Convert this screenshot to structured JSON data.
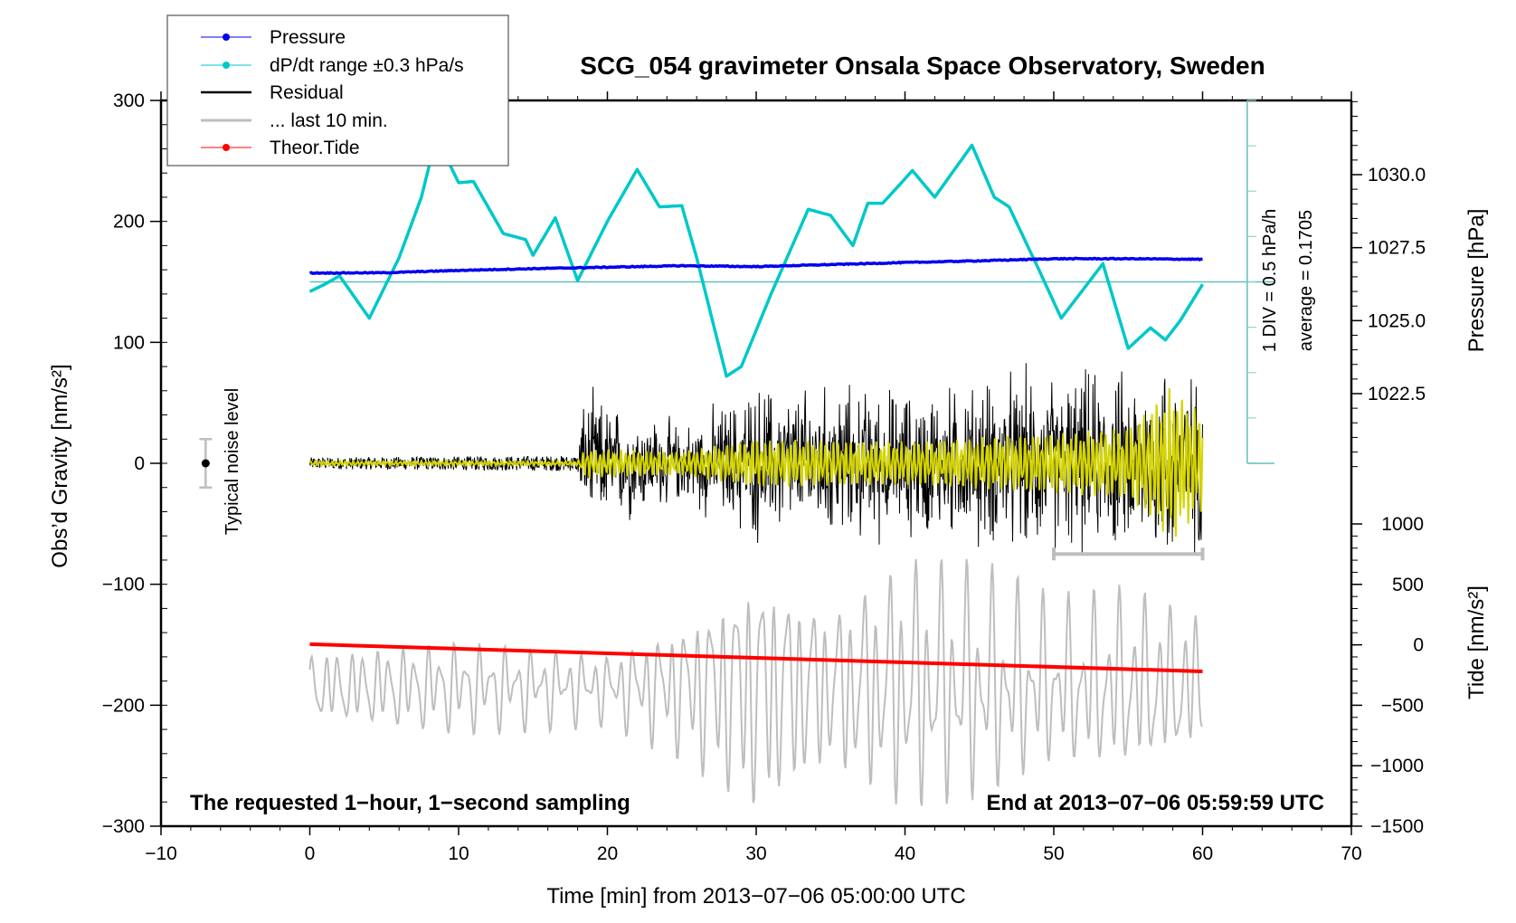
{
  "chart_data": {
    "type": "line",
    "title": "SCG_054 gravimeter Onsala Space Observatory, Sweden",
    "xlabel": "Time [min] from 2013−07−06 05:00:00 UTC",
    "ylabel_left": "Obs’d Gravity [nm/s²]",
    "ylabel_right_top": "Pressure [hPa]",
    "ylabel_right_bottom": "Tide [nm/s²]",
    "xlim": [
      -10,
      70
    ],
    "ylim_left": [
      -300,
      300
    ],
    "x_ticks": [
      "−10",
      "0",
      "10",
      "20",
      "30",
      "40",
      "50",
      "60",
      "70"
    ],
    "x_tick_values": [
      -10,
      0,
      10,
      20,
      30,
      40,
      50,
      60,
      70
    ],
    "y_left_ticks": [
      "300",
      "200",
      "100",
      "0",
      "−100",
      "−200",
      "−300"
    ],
    "y_left_tick_values": [
      300,
      200,
      100,
      0,
      -100,
      -200,
      -300
    ],
    "pressure_axis": {
      "ticks": [
        "1030.0",
        "1027.5",
        "1025.0",
        "1022.5"
      ],
      "tick_values": [
        1030.0,
        1027.5,
        1025.0,
        1022.5
      ],
      "range": [
        1020.0,
        1032.5
      ]
    },
    "tide_axis": {
      "ticks": [
        "1000",
        "500",
        "0",
        "−500",
        "−1000",
        "−1500"
      ],
      "tick_values": [
        1000,
        500,
        0,
        -500,
        -1000,
        -1500
      ],
      "range": [
        -1500,
        1000
      ]
    },
    "legend": {
      "placement": "top-left",
      "entries": [
        {
          "label": "Pressure",
          "color": "#0000ee",
          "marker": true
        },
        {
          "label": "dP/dt range ±0.3 hPa/s",
          "color": "#00c8c8",
          "marker": true
        },
        {
          "label": "Residual",
          "color": "#000000",
          "marker": false
        },
        {
          "label": "... last 10 min.",
          "color": "#bebebe",
          "marker": false
        },
        {
          "label": "Theor.Tide",
          "color": "#ff0000",
          "marker": true
        }
      ]
    },
    "annotations": {
      "noise_label": "Typical noise level",
      "noise_level": {
        "x": -7,
        "y": 0,
        "err": 20
      },
      "dpdt_scale": "1 DIV = 0.5 hPa/h",
      "dpdt_average": "average = 0.1705",
      "bottom_left": "The requested 1−hour, 1−second sampling",
      "bottom_right": "End at 2013−07−06 05:59:59 UTC",
      "last10_range_min": [
        50,
        60
      ]
    },
    "series": [
      {
        "name": "Pressure",
        "color": "#0000ee",
        "axis": "pressure",
        "x": [
          0,
          5,
          10,
          15,
          20,
          25,
          30,
          35,
          40,
          45,
          50,
          55,
          60
        ],
        "y": [
          1026.63,
          1026.64,
          1026.72,
          1026.78,
          1026.83,
          1026.88,
          1026.85,
          1026.92,
          1026.99,
          1027.05,
          1027.12,
          1027.12,
          1027.1
        ]
      },
      {
        "name": "dP/dt",
        "color": "#00c8c8",
        "axis": "left",
        "baseline": 150,
        "x": [
          0,
          1,
          2,
          4,
          6,
          7.5,
          8.5,
          10,
          11,
          13,
          14.5,
          15,
          16.5,
          18,
          20,
          22,
          23.5,
          25,
          26,
          28,
          29,
          31,
          33.5,
          35,
          36.5,
          37.5,
          38.5,
          40.5,
          42,
          44.5,
          46,
          47,
          49,
          50.5,
          53.3,
          55,
          56.5,
          57.5,
          58.5,
          60
        ],
        "y": [
          142,
          148,
          155,
          120,
          170,
          220,
          270,
          232,
          233,
          190,
          185,
          172,
          203,
          151,
          200,
          243,
          212,
          213,
          170,
          72,
          80,
          140,
          210,
          205,
          180,
          215,
          215,
          242,
          220,
          263,
          220,
          212,
          160,
          120,
          165,
          95,
          112,
          102,
          118,
          148
        ]
      },
      {
        "name": "Residual",
        "color": "#000000",
        "axis": "left",
        "description": "1-second residual; quiet (±8 nm/s²) for 0–18 min, then broadband oscillations growing to ±100 nm/s² near 58 min",
        "envelope": {
          "x": [
            0,
            18,
            18.5,
            25,
            30,
            40,
            48,
            55,
            58,
            60
          ],
          "amp": [
            6,
            8,
            70,
            40,
            80,
            75,
            90,
            90,
            110,
            80
          ]
        }
      },
      {
        "name": "Residual (filtered)",
        "color": "#d4d400",
        "axis": "left",
        "envelope": {
          "x": [
            0,
            18,
            18.5,
            25,
            30,
            40,
            50,
            55,
            58,
            60
          ],
          "amp": [
            2,
            2,
            12,
            10,
            20,
            18,
            25,
            30,
            65,
            40
          ]
        }
      },
      {
        "name": "... last 10 min.",
        "color": "#bebebe",
        "axis": "left",
        "description": "last 10 minutes (50–60 min) stretched across 0–60 min",
        "center": -185,
        "envelope": {
          "x": [
            0,
            10,
            20,
            25,
            30,
            35,
            40,
            45,
            50,
            55,
            60
          ],
          "amp": [
            30,
            40,
            30,
            60,
            110,
            70,
            110,
            100,
            70,
            80,
            60
          ]
        }
      },
      {
        "name": "Theor.Tide",
        "color": "#ff0000",
        "axis": "tide",
        "x": [
          0,
          60
        ],
        "y": [
          5,
          -220
        ]
      }
    ]
  }
}
